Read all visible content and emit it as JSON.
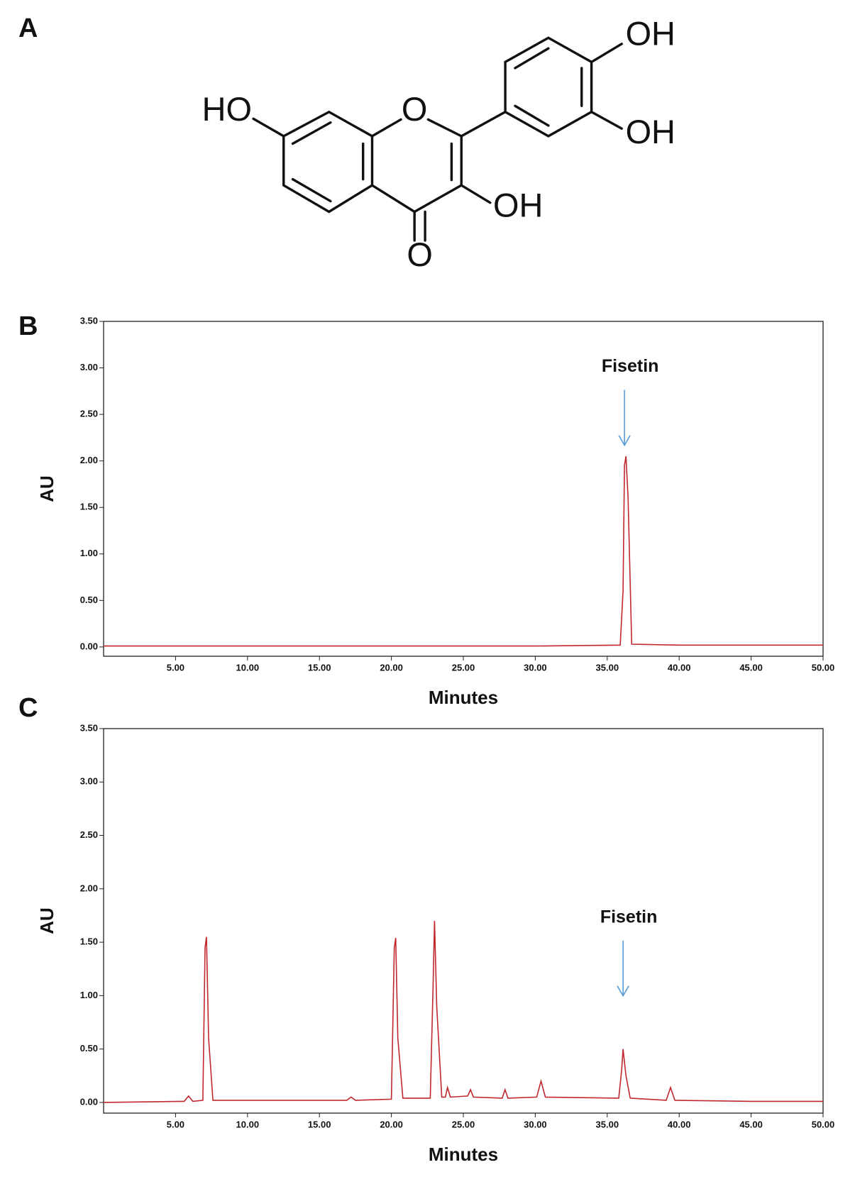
{
  "structure": {
    "panel": "A",
    "atom_labels": [
      "HO",
      "O",
      "O",
      "OH",
      "OH",
      "OH"
    ]
  },
  "chart_data": [
    {
      "type": "line",
      "panel": "B",
      "xlabel": "Minutes",
      "ylabel": "AU",
      "color": "#c0282d",
      "annotation": {
        "text": "Fisetin",
        "x": 36.2
      },
      "x": [
        0,
        5,
        10,
        15,
        20,
        25,
        30,
        35.9,
        36.1,
        36.2,
        36.3,
        36.45,
        36.7,
        40,
        45,
        50
      ],
      "values": [
        0.01,
        0.01,
        0.01,
        0.01,
        0.01,
        0.01,
        0.01,
        0.02,
        0.6,
        1.95,
        2.05,
        1.6,
        0.03,
        0.02,
        0.02,
        0.02
      ],
      "xlim": [
        0,
        50
      ],
      "ylim": [
        -0.1,
        3.5
      ],
      "xticks": [
        {
          "value": 5,
          "label": "5.00"
        },
        {
          "value": 10,
          "label": "10.00"
        },
        {
          "value": 15,
          "label": "15.00"
        },
        {
          "value": 20,
          "label": "20.00"
        },
        {
          "value": 25,
          "label": "25.00"
        },
        {
          "value": 30,
          "label": "30.00"
        },
        {
          "value": 35,
          "label": "35.00"
        },
        {
          "value": 40,
          "label": "40.00"
        },
        {
          "value": 45,
          "label": "45.00"
        },
        {
          "value": 50,
          "label": "50.00"
        }
      ],
      "yticks": [
        {
          "value": 0,
          "label": "0.00"
        },
        {
          "value": 0.5,
          "label": "0.50"
        },
        {
          "value": 1,
          "label": "1.00"
        },
        {
          "value": 1.5,
          "label": "1.50"
        },
        {
          "value": 2,
          "label": "2.00"
        },
        {
          "value": 2.5,
          "label": "2.50"
        },
        {
          "value": 3,
          "label": "3.00"
        },
        {
          "value": 3.5,
          "label": "3.50"
        }
      ]
    },
    {
      "type": "line",
      "panel": "C",
      "xlabel": "Minutes",
      "ylabel": "AU",
      "color": "#c0282d",
      "annotation": {
        "text": "Fisetin",
        "x": 36.1
      },
      "x": [
        0,
        5.6,
        5.9,
        6.2,
        6.9,
        7.05,
        7.15,
        7.3,
        7.6,
        11,
        16.9,
        17.2,
        17.5,
        20,
        20.2,
        20.3,
        20.45,
        20.8,
        22.7,
        22.9,
        23.0,
        23.15,
        23.5,
        23.75,
        23.9,
        24.1,
        25.3,
        25.5,
        25.7,
        27.7,
        27.9,
        28.1,
        30.1,
        30.4,
        30.7,
        35.8,
        36.0,
        36.1,
        36.3,
        36.6,
        39.1,
        39.4,
        39.7,
        45,
        50
      ],
      "values": [
        0,
        0.01,
        0.06,
        0.01,
        0.02,
        1.45,
        1.55,
        0.6,
        0.02,
        0.02,
        0.02,
        0.05,
        0.02,
        0.03,
        1.45,
        1.54,
        0.6,
        0.04,
        0.04,
        1.1,
        1.7,
        0.9,
        0.05,
        0.05,
        0.14,
        0.05,
        0.06,
        0.12,
        0.05,
        0.04,
        0.12,
        0.04,
        0.05,
        0.2,
        0.05,
        0.04,
        0.3,
        0.5,
        0.25,
        0.04,
        0.02,
        0.14,
        0.02,
        0.01,
        0.01
      ],
      "xlim": [
        0,
        50
      ],
      "ylim": [
        -0.1,
        3.5
      ],
      "xticks": [
        {
          "value": 5,
          "label": "5.00"
        },
        {
          "value": 10,
          "label": "10.00"
        },
        {
          "value": 15,
          "label": "15.00"
        },
        {
          "value": 20,
          "label": "20.00"
        },
        {
          "value": 25,
          "label": "25.00"
        },
        {
          "value": 30,
          "label": "30.00"
        },
        {
          "value": 35,
          "label": "35.00"
        },
        {
          "value": 40,
          "label": "40.00"
        },
        {
          "value": 45,
          "label": "45.00"
        },
        {
          "value": 50,
          "label": "50.00"
        }
      ],
      "yticks": [
        {
          "value": 0,
          "label": "0.00"
        },
        {
          "value": 0.5,
          "label": "0.50"
        },
        {
          "value": 1,
          "label": "1.00"
        },
        {
          "value": 1.5,
          "label": "1.50"
        },
        {
          "value": 2,
          "label": "2.00"
        },
        {
          "value": 2.5,
          "label": "2.50"
        },
        {
          "value": 3,
          "label": "3.00"
        },
        {
          "value": 3.5,
          "label": "3.50"
        }
      ]
    }
  ]
}
